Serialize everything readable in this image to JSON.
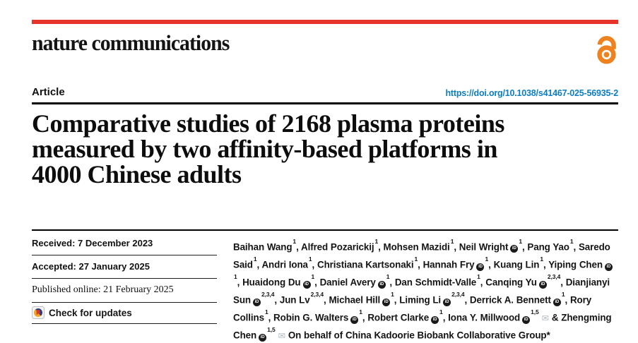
{
  "colors": {
    "accent_red": "#e8352b",
    "oa_orange": "#ef8220",
    "doi_blue": "#0d7dc1"
  },
  "masthead": {
    "brand": "nature communications",
    "open_access_icon": "open-access-lock-icon"
  },
  "article_header": {
    "label": "Article",
    "doi": "https://doi.org/10.1038/s41467-025-56935-2"
  },
  "title_lines": [
    "Comparative studies of 2168 plasma proteins",
    "measured by two affinity-based platforms in",
    "4000 Chinese adults"
  ],
  "dates": {
    "rows": [
      "Received: 7 December 2023",
      "Accepted: 27 January 2025",
      "Published online: 21 February 2025"
    ]
  },
  "check_updates": {
    "label": "Check for updates",
    "icon": "crossmark-circle-icon"
  },
  "authors": {
    "orcid_icon": "orcid-id-icon",
    "email_icon": "envelope-icon",
    "last_separator": "&",
    "on_behalf": "On behalf of China Kadoorie Biobank Collaborative Group*",
    "list": [
      {
        "name": "Baihan Wang",
        "sup": "1"
      },
      {
        "name": "Alfred Pozarickij",
        "sup": "1"
      },
      {
        "name": "Mohsen Mazidi",
        "sup": "1"
      },
      {
        "name": "Neil Wright",
        "orcid": true,
        "sup": "1"
      },
      {
        "name": "Pang Yao",
        "sup": "1"
      },
      {
        "name": "Saredo Said",
        "sup": "1"
      },
      {
        "name": "Andri Iona",
        "sup": "1"
      },
      {
        "name": "Christiana Kartsonaki",
        "sup": "1"
      },
      {
        "name": "Hannah Fry",
        "orcid": true,
        "sup": "1"
      },
      {
        "name": "Kuang Lin",
        "sup": "1"
      },
      {
        "name": "Yiping Chen",
        "orcid": true,
        "sup": "1"
      },
      {
        "name": "Huaidong Du",
        "orcid": true,
        "sup": "1"
      },
      {
        "name": "Daniel Avery",
        "orcid": true,
        "sup": "1"
      },
      {
        "name": "Dan Schmidt-Valle",
        "sup": "1"
      },
      {
        "name": "Canqing Yu",
        "orcid": true,
        "sup": "2,3,4"
      },
      {
        "name": "Dianjianyi Sun",
        "orcid": true,
        "sup": "2,3,4"
      },
      {
        "name": "Jun Lv",
        "sup": "2,3,4"
      },
      {
        "name": "Michael Hill",
        "orcid": true,
        "sup": "1"
      },
      {
        "name": "Liming Li",
        "orcid": true,
        "sup": "2,3,4"
      },
      {
        "name": "Derrick A. Bennett",
        "orcid": true,
        "sup": "1"
      },
      {
        "name": "Rory Collins",
        "sup": "1"
      },
      {
        "name": "Robin G. Walters",
        "orcid": true,
        "sup": "1"
      },
      {
        "name": "Robert Clarke",
        "orcid": true,
        "sup": "1"
      },
      {
        "name": "Iona Y. Millwood",
        "orcid": true,
        "sup": "1,5",
        "email": true
      },
      {
        "name": "Zhengming Chen",
        "orcid": true,
        "sup": "1,5",
        "email": true
      }
    ]
  }
}
